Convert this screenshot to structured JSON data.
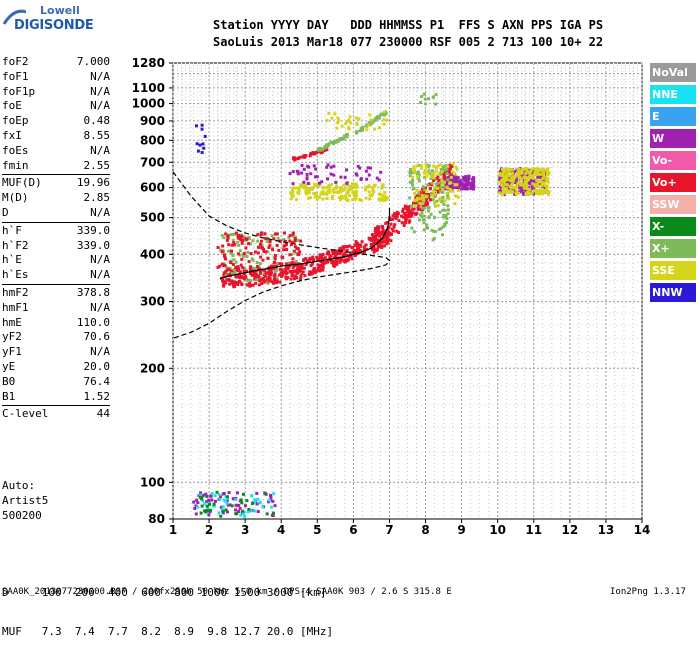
{
  "logo": {
    "top": "Lowell",
    "bottom": "DIGISONDE"
  },
  "header": {
    "line1": "Station YYYY DAY   DDD HHMMSS P1  FFS S AXN PPS IGA PS",
    "line2": "SaoLuis 2013 Mar18 077 230000 RSF 005 2 713 100 10+ 22"
  },
  "params": {
    "g1": [
      {
        "label": "foF2",
        "value": "7.000"
      },
      {
        "label": "foF1",
        "value": "N/A"
      },
      {
        "label": "foF1p",
        "value": "N/A"
      },
      {
        "label": "foE",
        "value": "N/A"
      },
      {
        "label": "foEp",
        "value": "0.48"
      },
      {
        "label": "fxI",
        "value": "8.55"
      },
      {
        "label": "foEs",
        "value": "N/A"
      },
      {
        "label": "fmin",
        "value": "2.55"
      }
    ],
    "g2": [
      {
        "label": "MUF(D)",
        "value": "19.96"
      },
      {
        "label": "M(D)",
        "value": "2.85"
      },
      {
        "label": "D",
        "value": "N/A"
      }
    ],
    "g3": [
      {
        "label": "h`F",
        "value": "339.0"
      },
      {
        "label": "h`F2",
        "value": "339.0"
      },
      {
        "label": "h`E",
        "value": "N/A"
      },
      {
        "label": "h`Es",
        "value": "N/A"
      }
    ],
    "g4": [
      {
        "label": "hmF2",
        "value": "378.8"
      },
      {
        "label": "hmF1",
        "value": "N/A"
      },
      {
        "label": "hmE",
        "value": "110.0"
      },
      {
        "label": "yF2",
        "value": "70.6"
      },
      {
        "label": "yF1",
        "value": "N/A"
      },
      {
        "label": "yE",
        "value": "20.0"
      },
      {
        "label": "B0",
        "value": "76.4"
      },
      {
        "label": "B1",
        "value": "1.52"
      }
    ],
    "g5": [
      {
        "label": "C-level",
        "value": "44"
      }
    ]
  },
  "auto": {
    "l1": "Auto:",
    "l2": "Artist5",
    "l3": "500200"
  },
  "legend": [
    {
      "label": "NoVal",
      "color": "#9a9a9a"
    },
    {
      "label": "NNE",
      "color": "#19e3f2"
    },
    {
      "label": "E",
      "color": "#3aa3f0"
    },
    {
      "label": "W",
      "color": "#a020b0"
    },
    {
      "label": "Vo-",
      "color": "#f05aa8"
    },
    {
      "label": "Vo+",
      "color": "#e8142c"
    },
    {
      "label": "SSW",
      "color": "#f2b0a8"
    },
    {
      "label": "X-",
      "color": "#0a8a1a"
    },
    {
      "label": "X+",
      "color": "#7fba5a"
    },
    {
      "label": "SSE",
      "color": "#d4d41a"
    },
    {
      "label": "NNW",
      "color": "#2a1ad8"
    }
  ],
  "dmuf": {
    "d_line": "D     100  200  400  600  800 1000 1500 3000 [km]",
    "muf_line": "MUF   7.3  7.4  7.7  8.2  8.9  9.8 12.7 20.0 [MHz]"
  },
  "footer": {
    "left": "SAA0K_2013077230000.RSF / 260fx256h 50 kHz 5.0 km / DPS-4 SAA0K 903 / 2.6 S 315.8 E",
    "right": "Ion2Png 1.3.17"
  },
  "chart_data": {
    "type": "scatter",
    "title": "",
    "xlabel": "",
    "ylabel": "",
    "xlim": [
      1,
      14
    ],
    "ylim": [
      80,
      1280
    ],
    "y_scale": "log",
    "x_ticks": [
      "1",
      "2",
      "3",
      "4",
      "5",
      "6",
      "7",
      "8",
      "9",
      "10",
      "11",
      "12",
      "13",
      "14"
    ],
    "y_ticks": [
      "80",
      "100",
      "200",
      "300",
      "400",
      "500",
      "600",
      "700",
      "800",
      "900",
      "1000",
      "1100",
      "1280"
    ],
    "y_tick_values": [
      80,
      100,
      200,
      300,
      400,
      500,
      600,
      700,
      800,
      900,
      1000,
      1100,
      1280
    ],
    "clusters": [
      {
        "name": "Vo+",
        "color": "#e8142c",
        "x": [
          2.3,
          7.0
        ],
        "y": [
          330,
          470
        ],
        "n": 420,
        "trace": true
      },
      {
        "name": "Vo+",
        "color": "#e8142c",
        "x": [
          6.5,
          8.7
        ],
        "y": [
          430,
          700
        ],
        "n": 260,
        "trace2": true
      },
      {
        "name": "W",
        "color": "#a020b0",
        "x": [
          8.5,
          9.3
        ],
        "y": [
          600,
          650
        ],
        "n": 120
      },
      {
        "name": "W",
        "color": "#a020b0",
        "x": [
          10.0,
          11.3
        ],
        "y": [
          580,
          680
        ],
        "n": 200
      },
      {
        "name": "SSE",
        "color": "#d4d41a",
        "x": [
          10.0,
          11.4
        ],
        "y": [
          580,
          680
        ],
        "n": 200
      },
      {
        "name": "X+",
        "color": "#7fba5a",
        "x": [
          7.5,
          8.6
        ],
        "y": [
          440,
          700
        ],
        "n": 120
      },
      {
        "name": "SSE",
        "color": "#d4d41a",
        "x": [
          4.2,
          6.9
        ],
        "y": [
          560,
          620
        ],
        "n": 160
      },
      {
        "name": "SSE",
        "color": "#d4d41a",
        "x": [
          7.6,
          8.9
        ],
        "y": [
          540,
          700
        ],
        "n": 80
      },
      {
        "name": "X+",
        "color": "#7fba5a",
        "x": [
          2.2,
          4.5
        ],
        "y": [
          340,
          460
        ],
        "n": 90
      },
      {
        "name": "Vo+",
        "color": "#e8142c",
        "x": [
          2.2,
          4.5
        ],
        "y": [
          340,
          460
        ],
        "n": 160
      },
      {
        "name": "W",
        "color": "#a020b0",
        "x": [
          1.5,
          3.9
        ],
        "y": [
          82,
          95
        ],
        "n": 60
      },
      {
        "name": "NNE",
        "color": "#19e3f2",
        "x": [
          1.6,
          3.8
        ],
        "y": [
          82,
          95
        ],
        "n": 40
      },
      {
        "name": "X-",
        "color": "#0a8a1a",
        "x": [
          1.6,
          3.8
        ],
        "y": [
          82,
          95
        ],
        "n": 30
      },
      {
        "name": "Vo+",
        "color": "#e8142c",
        "x": [
          4.3,
          5.2
        ],
        "y": [
          720,
          760
        ],
        "n": 40,
        "diag": [
          4.3,
          720,
          5.2,
          760
        ]
      },
      {
        "name": "X+",
        "color": "#7fba5a",
        "x": [
          5.0,
          5.9
        ],
        "y": [
          760,
          840
        ],
        "n": 40,
        "diag": [
          5.0,
          760,
          5.9,
          840
        ]
      },
      {
        "name": "X+",
        "color": "#7fba5a",
        "x": [
          6.0,
          6.9
        ],
        "y": [
          830,
          960
        ],
        "n": 40,
        "diag": [
          6.0,
          840,
          6.9,
          960
        ]
      },
      {
        "name": "SSE",
        "color": "#d4d41a",
        "x": [
          5.2,
          6.9
        ],
        "y": [
          860,
          960
        ],
        "n": 30
      },
      {
        "name": "W",
        "color": "#a020b0",
        "x": [
          4.2,
          6.8
        ],
        "y": [
          620,
          700
        ],
        "n": 50
      },
      {
        "name": "NNW",
        "color": "#2a1ad8",
        "x": [
          1.6,
          1.9
        ],
        "y": [
          700,
          900
        ],
        "n": 10
      },
      {
        "name": "X+",
        "color": "#7fba5a",
        "x": [
          7.8,
          8.3
        ],
        "y": [
          1000,
          1070
        ],
        "n": 10
      }
    ],
    "curves": [
      {
        "name": "dashed",
        "style": "dashed",
        "points": [
          [
            1.0,
            660
          ],
          [
            1.5,
            570
          ],
          [
            2.0,
            505
          ],
          [
            2.5,
            475
          ],
          [
            3.0,
            455
          ],
          [
            3.5,
            442
          ],
          [
            4.0,
            432
          ],
          [
            4.5,
            424
          ],
          [
            5.0,
            417
          ],
          [
            5.5,
            410
          ],
          [
            6.0,
            404
          ],
          [
            6.3,
            400
          ],
          [
            6.6,
            396
          ],
          [
            6.9,
            392
          ],
          [
            7.0,
            385
          ],
          [
            6.9,
            375
          ],
          [
            6.5,
            367
          ],
          [
            6.0,
            360
          ],
          [
            5.5,
            354
          ],
          [
            5.0,
            348
          ],
          [
            4.5,
            340
          ],
          [
            4.0,
            330
          ],
          [
            3.5,
            318
          ],
          [
            3.0,
            302
          ],
          [
            2.5,
            283
          ],
          [
            2.0,
            263
          ],
          [
            1.5,
            249
          ],
          [
            1.0,
            240
          ]
        ]
      },
      {
        "name": "profile",
        "style": "solid",
        "points": [
          [
            7.0,
            530
          ],
          [
            7.0,
            500
          ],
          [
            6.95,
            470
          ],
          [
            6.8,
            440
          ],
          [
            6.5,
            415
          ],
          [
            6.2,
            405
          ],
          [
            5.8,
            395
          ],
          [
            5.2,
            386
          ],
          [
            4.6,
            378
          ],
          [
            4.0,
            372
          ],
          [
            3.4,
            364
          ],
          [
            2.9,
            356
          ],
          [
            2.5,
            350
          ],
          [
            2.3,
            345
          ]
        ]
      }
    ]
  }
}
